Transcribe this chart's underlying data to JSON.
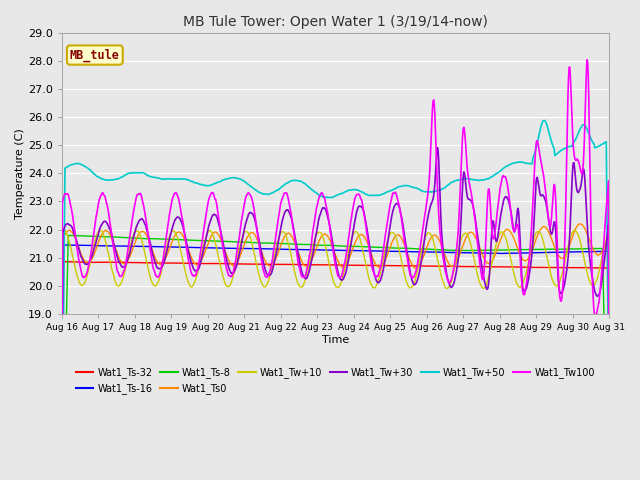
{
  "title": "MB Tule Tower: Open Water 1 (3/19/14-now)",
  "xlabel": "Time",
  "ylabel": "Temperature (C)",
  "ylim": [
    19.0,
    29.0
  ],
  "fig_bg": "#e8e8e8",
  "plot_bg": "#e8e8e8",
  "series": {
    "Wat1_Ts-32": {
      "color": "#ff0000",
      "lw": 1.0
    },
    "Wat1_Ts-16": {
      "color": "#0000ff",
      "lw": 1.0
    },
    "Wat1_Ts-8": {
      "color": "#00cc00",
      "lw": 1.0
    },
    "Wat1_Ts0": {
      "color": "#ff8800",
      "lw": 1.0
    },
    "Wat1_Tw+10": {
      "color": "#cccc00",
      "lw": 1.0
    },
    "Wat1_Tw+30": {
      "color": "#8800cc",
      "lw": 1.2
    },
    "Wat1_Tw+50": {
      "color": "#00cccc",
      "lw": 1.2
    },
    "Wat1_Tw100": {
      "color": "#ff00ff",
      "lw": 1.2
    }
  },
  "tick_labels": [
    "Aug 16",
    "Aug 17",
    "Aug 18",
    "Aug 19",
    "Aug 20",
    "Aug 21",
    "Aug 22",
    "Aug 23",
    "Aug 24",
    "Aug 25",
    "Aug 26",
    "Aug 27",
    "Aug 28",
    "Aug 29",
    "Aug 30",
    "Aug 31"
  ],
  "yticks": [
    19.0,
    20.0,
    21.0,
    22.0,
    23.0,
    24.0,
    25.0,
    26.0,
    27.0,
    28.0,
    29.0
  ],
  "legend_box_color": "#ffffcc",
  "legend_box_edge": "#ccaa00",
  "legend_label_color": "#880000",
  "legend_label": "MB_tule",
  "grid_color": "#ffffff"
}
